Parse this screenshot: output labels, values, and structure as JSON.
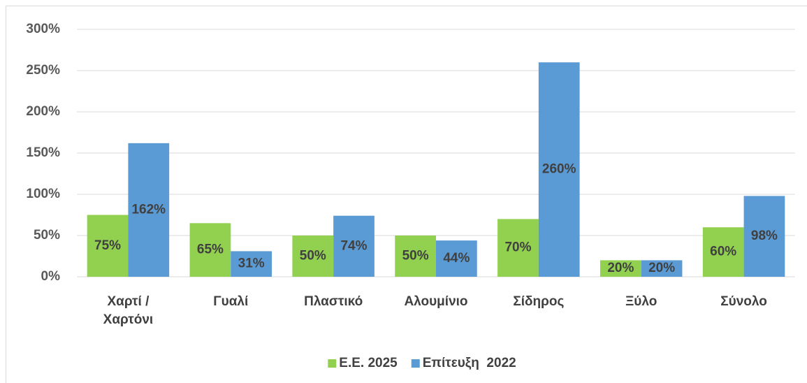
{
  "chart_data": {
    "type": "bar",
    "categories": [
      "Χαρτί / Χαρτόνι",
      "Γυαλί",
      "Πλαστικό",
      "Αλουμίνιο",
      "Σίδηρος",
      "Ξύλο",
      "Σύνολο"
    ],
    "series": [
      {
        "name": "Ε.Ε. 2025",
        "color": "#92d050",
        "values": [
          75,
          65,
          50,
          50,
          70,
          20,
          60
        ],
        "value_labels": [
          "75%",
          "65%",
          "50%",
          "50%",
          "70%",
          "20%",
          "60%"
        ]
      },
      {
        "name": "Επίτευξη  2022",
        "color": "#5b9bd5",
        "values": [
          162,
          31,
          74,
          44,
          260,
          20,
          98
        ],
        "value_labels": [
          "162%",
          "31%",
          "74%",
          "44%",
          "260%",
          "20%",
          "98%"
        ]
      }
    ],
    "ylim": [
      0,
      300
    ],
    "yticks": [
      {
        "value": 0,
        "label": "0%"
      },
      {
        "value": 50,
        "label": "50%"
      },
      {
        "value": 100,
        "label": "100%"
      },
      {
        "value": 150,
        "label": "150%"
      },
      {
        "value": 200,
        "label": "200%"
      },
      {
        "value": 250,
        "label": "250%"
      },
      {
        "value": 300,
        "label": "300%"
      }
    ],
    "grid": true,
    "legend": "bottom"
  }
}
